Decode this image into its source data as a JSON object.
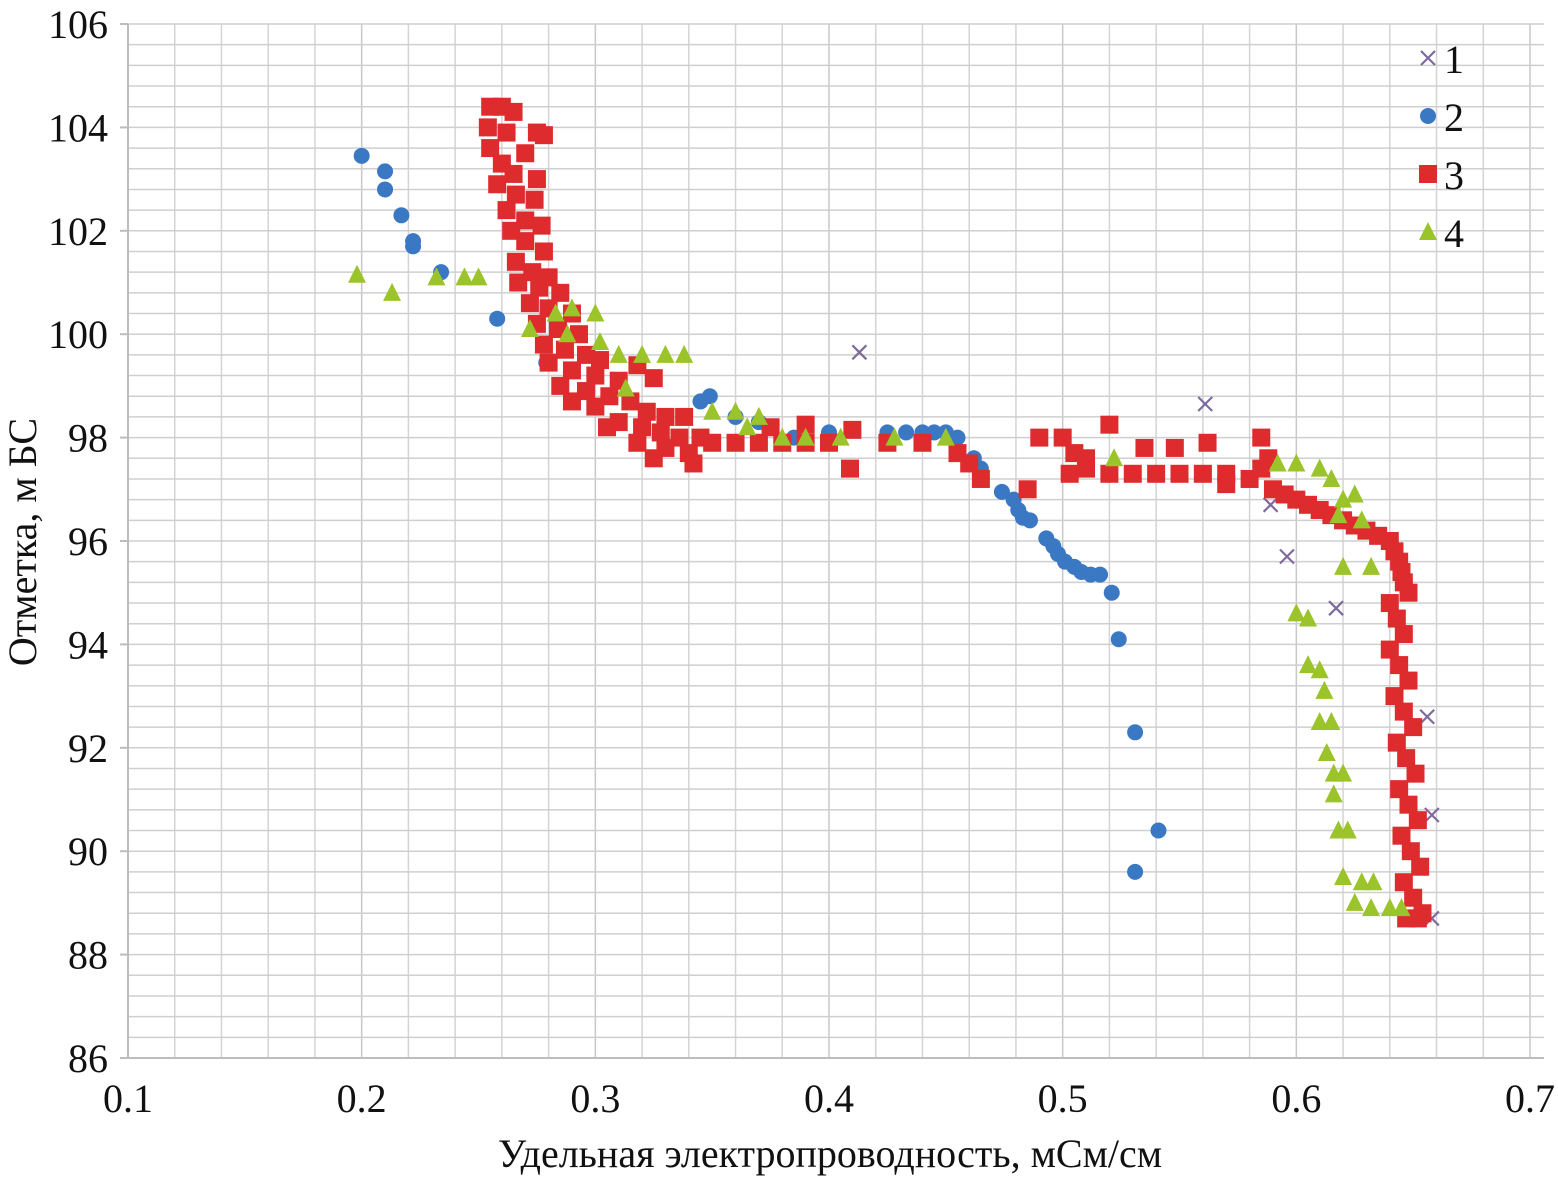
{
  "chart_data": {
    "type": "scatter",
    "title": "",
    "xlabel": "Удельная электропроводность, мСм/см",
    "ylabel": "Отметка, м БС",
    "xlim": [
      0.1,
      0.7
    ],
    "ylim": [
      86,
      106
    ],
    "x_ticks": [
      "0.1",
      "0.2",
      "0.3",
      "0.4",
      "0.5",
      "0.6",
      "0.7"
    ],
    "y_ticks": [
      "86",
      "88",
      "90",
      "92",
      "94",
      "96",
      "98",
      "100",
      "102",
      "104",
      "106"
    ],
    "grid": true,
    "legend_position": "top-right",
    "series": [
      {
        "name": "1",
        "marker": "x",
        "color": "#7d6b9e",
        "points": [
          [
            0.413,
            99.65
          ],
          [
            0.561,
            98.65
          ],
          [
            0.589,
            96.7
          ],
          [
            0.596,
            95.7
          ],
          [
            0.617,
            94.7
          ],
          [
            0.656,
            92.6
          ],
          [
            0.658,
            90.7
          ],
          [
            0.658,
            88.7
          ]
        ]
      },
      {
        "name": "2",
        "marker": "circle",
        "color": "#3a78c4",
        "points": [
          [
            0.2,
            103.45
          ],
          [
            0.21,
            103.15
          ],
          [
            0.21,
            102.8
          ],
          [
            0.217,
            102.3
          ],
          [
            0.222,
            101.8
          ],
          [
            0.222,
            101.7
          ],
          [
            0.234,
            101.2
          ],
          [
            0.258,
            100.3
          ],
          [
            0.279,
            99.45
          ],
          [
            0.345,
            98.7
          ],
          [
            0.349,
            98.8
          ],
          [
            0.36,
            98.4
          ],
          [
            0.37,
            98.3
          ],
          [
            0.385,
            98.0
          ],
          [
            0.4,
            98.1
          ],
          [
            0.425,
            98.1
          ],
          [
            0.433,
            98.1
          ],
          [
            0.44,
            98.1
          ],
          [
            0.445,
            98.1
          ],
          [
            0.45,
            98.1
          ],
          [
            0.455,
            98.0
          ],
          [
            0.462,
            97.6
          ],
          [
            0.465,
            97.4
          ],
          [
            0.474,
            96.95
          ],
          [
            0.479,
            96.8
          ],
          [
            0.481,
            96.6
          ],
          [
            0.483,
            96.45
          ],
          [
            0.486,
            96.4
          ],
          [
            0.493,
            96.05
          ],
          [
            0.496,
            95.9
          ],
          [
            0.498,
            95.75
          ],
          [
            0.501,
            95.6
          ],
          [
            0.505,
            95.5
          ],
          [
            0.508,
            95.4
          ],
          [
            0.512,
            95.35
          ],
          [
            0.516,
            95.35
          ],
          [
            0.521,
            95.0
          ],
          [
            0.524,
            94.1
          ],
          [
            0.531,
            92.3
          ],
          [
            0.541,
            90.4
          ],
          [
            0.531,
            89.6
          ]
        ]
      },
      {
        "name": "3",
        "marker": "square",
        "color": "#dd2b2e",
        "points": [
          [
            0.255,
            104.4
          ],
          [
            0.26,
            104.4
          ],
          [
            0.265,
            104.3
          ],
          [
            0.254,
            104.0
          ],
          [
            0.262,
            103.9
          ],
          [
            0.275,
            103.9
          ],
          [
            0.278,
            103.85
          ],
          [
            0.255,
            103.6
          ],
          [
            0.27,
            103.5
          ],
          [
            0.26,
            103.3
          ],
          [
            0.265,
            103.1
          ],
          [
            0.275,
            103.0
          ],
          [
            0.258,
            102.9
          ],
          [
            0.266,
            102.7
          ],
          [
            0.274,
            102.6
          ],
          [
            0.262,
            102.4
          ],
          [
            0.27,
            102.2
          ],
          [
            0.277,
            102.1
          ],
          [
            0.264,
            102.0
          ],
          [
            0.27,
            101.8
          ],
          [
            0.278,
            101.6
          ],
          [
            0.266,
            101.4
          ],
          [
            0.273,
            101.2
          ],
          [
            0.28,
            101.1
          ],
          [
            0.267,
            101.0
          ],
          [
            0.276,
            100.9
          ],
          [
            0.285,
            100.8
          ],
          [
            0.272,
            100.6
          ],
          [
            0.28,
            100.5
          ],
          [
            0.29,
            100.4
          ],
          [
            0.275,
            100.2
          ],
          [
            0.284,
            100.1
          ],
          [
            0.293,
            100.0
          ],
          [
            0.278,
            99.8
          ],
          [
            0.287,
            99.7
          ],
          [
            0.296,
            99.6
          ],
          [
            0.302,
            99.5
          ],
          [
            0.318,
            99.4
          ],
          [
            0.28,
            99.45
          ],
          [
            0.29,
            99.3
          ],
          [
            0.3,
            99.2
          ],
          [
            0.31,
            99.1
          ],
          [
            0.325,
            99.15
          ],
          [
            0.285,
            99.0
          ],
          [
            0.296,
            98.9
          ],
          [
            0.306,
            98.8
          ],
          [
            0.315,
            98.7
          ],
          [
            0.29,
            98.7
          ],
          [
            0.3,
            98.6
          ],
          [
            0.322,
            98.5
          ],
          [
            0.33,
            98.4
          ],
          [
            0.338,
            98.4
          ],
          [
            0.31,
            98.3
          ],
          [
            0.32,
            98.2
          ],
          [
            0.305,
            98.2
          ],
          [
            0.328,
            98.1
          ],
          [
            0.336,
            98.0
          ],
          [
            0.345,
            98.0
          ],
          [
            0.318,
            97.9
          ],
          [
            0.33,
            97.8
          ],
          [
            0.34,
            97.7
          ],
          [
            0.325,
            97.6
          ],
          [
            0.342,
            97.5
          ],
          [
            0.35,
            97.9
          ],
          [
            0.36,
            97.9
          ],
          [
            0.37,
            97.9
          ],
          [
            0.38,
            97.9
          ],
          [
            0.39,
            97.9
          ],
          [
            0.4,
            97.9
          ],
          [
            0.375,
            98.2
          ],
          [
            0.39,
            98.25
          ],
          [
            0.41,
            98.15
          ],
          [
            0.409,
            97.4
          ],
          [
            0.425,
            97.9
          ],
          [
            0.44,
            97.9
          ],
          [
            0.455,
            97.7
          ],
          [
            0.46,
            97.5
          ],
          [
            0.465,
            97.2
          ],
          [
            0.485,
            97.0
          ],
          [
            0.49,
            98.0
          ],
          [
            0.5,
            98.0
          ],
          [
            0.505,
            97.7
          ],
          [
            0.51,
            97.6
          ],
          [
            0.52,
            98.25
          ],
          [
            0.503,
            97.3
          ],
          [
            0.51,
            97.4
          ],
          [
            0.52,
            97.3
          ],
          [
            0.53,
            97.3
          ],
          [
            0.54,
            97.3
          ],
          [
            0.55,
            97.3
          ],
          [
            0.56,
            97.3
          ],
          [
            0.57,
            97.3
          ],
          [
            0.535,
            97.8
          ],
          [
            0.548,
            97.8
          ],
          [
            0.562,
            97.9
          ],
          [
            0.57,
            97.1
          ],
          [
            0.58,
            97.2
          ],
          [
            0.585,
            97.4
          ],
          [
            0.59,
            97.0
          ],
          [
            0.595,
            96.9
          ],
          [
            0.585,
            98.0
          ],
          [
            0.588,
            97.6
          ],
          [
            0.6,
            96.8
          ],
          [
            0.605,
            96.7
          ],
          [
            0.61,
            96.6
          ],
          [
            0.615,
            96.5
          ],
          [
            0.62,
            96.4
          ],
          [
            0.625,
            96.3
          ],
          [
            0.63,
            96.2
          ],
          [
            0.635,
            96.1
          ],
          [
            0.64,
            96.0
          ],
          [
            0.642,
            95.8
          ],
          [
            0.644,
            95.6
          ],
          [
            0.645,
            95.4
          ],
          [
            0.646,
            95.2
          ],
          [
            0.648,
            95.0
          ],
          [
            0.64,
            94.8
          ],
          [
            0.643,
            94.5
          ],
          [
            0.646,
            94.2
          ],
          [
            0.64,
            93.9
          ],
          [
            0.644,
            93.6
          ],
          [
            0.648,
            93.3
          ],
          [
            0.642,
            93.0
          ],
          [
            0.646,
            92.7
          ],
          [
            0.65,
            92.4
          ],
          [
            0.643,
            92.1
          ],
          [
            0.647,
            91.8
          ],
          [
            0.651,
            91.5
          ],
          [
            0.644,
            91.2
          ],
          [
            0.648,
            90.9
          ],
          [
            0.652,
            90.6
          ],
          [
            0.645,
            90.3
          ],
          [
            0.649,
            90.0
          ],
          [
            0.653,
            89.7
          ],
          [
            0.646,
            89.4
          ],
          [
            0.65,
            89.1
          ],
          [
            0.654,
            88.8
          ],
          [
            0.647,
            88.7
          ],
          [
            0.652,
            88.7
          ]
        ]
      },
      {
        "name": "4",
        "marker": "triangle",
        "color": "#9bc32a",
        "points": [
          [
            0.198,
            101.15
          ],
          [
            0.213,
            100.8
          ],
          [
            0.232,
            101.1
          ],
          [
            0.244,
            101.1
          ],
          [
            0.25,
            101.1
          ],
          [
            0.272,
            100.1
          ],
          [
            0.283,
            100.4
          ],
          [
            0.29,
            100.5
          ],
          [
            0.3,
            100.4
          ],
          [
            0.288,
            100.0
          ],
          [
            0.302,
            99.85
          ],
          [
            0.31,
            99.6
          ],
          [
            0.32,
            99.6
          ],
          [
            0.33,
            99.6
          ],
          [
            0.338,
            99.6
          ],
          [
            0.313,
            98.95
          ],
          [
            0.35,
            98.5
          ],
          [
            0.36,
            98.5
          ],
          [
            0.37,
            98.4
          ],
          [
            0.365,
            98.2
          ],
          [
            0.38,
            98.0
          ],
          [
            0.39,
            98.0
          ],
          [
            0.405,
            98.0
          ],
          [
            0.428,
            98.0
          ],
          [
            0.45,
            98.0
          ],
          [
            0.522,
            97.6
          ],
          [
            0.592,
            97.5
          ],
          [
            0.6,
            97.5
          ],
          [
            0.61,
            97.4
          ],
          [
            0.615,
            97.2
          ],
          [
            0.62,
            96.8
          ],
          [
            0.625,
            96.9
          ],
          [
            0.618,
            96.5
          ],
          [
            0.628,
            96.4
          ],
          [
            0.632,
            95.5
          ],
          [
            0.62,
            95.5
          ],
          [
            0.6,
            94.6
          ],
          [
            0.605,
            94.5
          ],
          [
            0.605,
            93.6
          ],
          [
            0.61,
            93.5
          ],
          [
            0.612,
            93.1
          ],
          [
            0.61,
            92.5
          ],
          [
            0.615,
            92.5
          ],
          [
            0.613,
            91.9
          ],
          [
            0.616,
            91.5
          ],
          [
            0.62,
            91.5
          ],
          [
            0.616,
            91.1
          ],
          [
            0.618,
            90.4
          ],
          [
            0.622,
            90.4
          ],
          [
            0.62,
            89.5
          ],
          [
            0.628,
            89.4
          ],
          [
            0.633,
            89.4
          ],
          [
            0.625,
            89.0
          ],
          [
            0.632,
            88.9
          ],
          [
            0.64,
            88.9
          ],
          [
            0.645,
            88.9
          ]
        ]
      }
    ]
  }
}
